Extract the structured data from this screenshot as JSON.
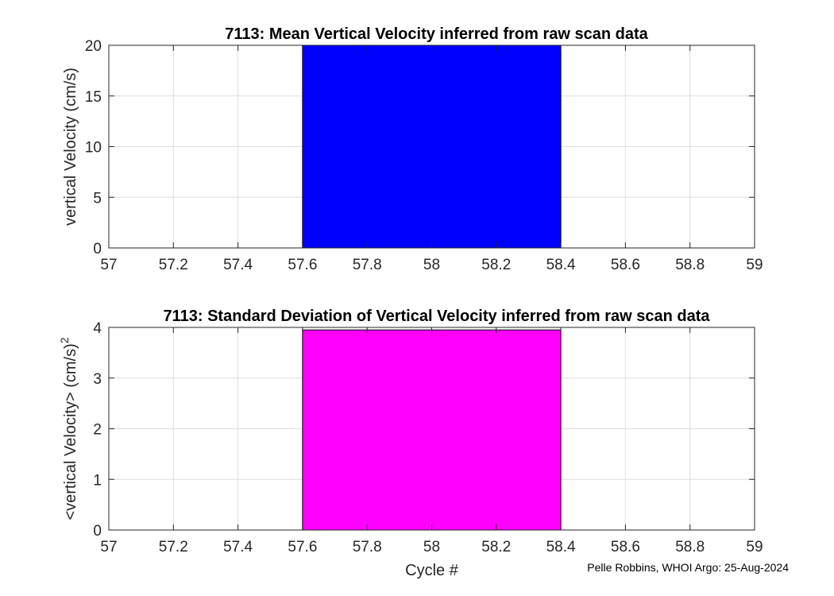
{
  "credit": "Pelle Robbins, WHOI Argo: 25-Aug-2024",
  "chart_data": [
    {
      "type": "bar",
      "title": "7113: Mean Vertical Velocity inferred from raw scan data",
      "xlabel": "",
      "ylabel": "vertical Velocity (cm/s)",
      "ylabel_superscript": "",
      "categories": [
        58
      ],
      "values": [
        20
      ],
      "bar_width": 0.8,
      "xlim": [
        57,
        59
      ],
      "ylim": [
        0,
        20
      ],
      "xticks": [
        57,
        57.2,
        57.4,
        57.6,
        57.8,
        58,
        58.2,
        58.4,
        58.6,
        58.8,
        59
      ],
      "yticks": [
        0,
        5,
        10,
        15,
        20
      ],
      "bar_color": "#0000ff",
      "grid": true
    },
    {
      "type": "bar",
      "title": "7113: Standard Deviation of Vertical Velocity inferred from raw scan data",
      "xlabel": "Cycle #",
      "ylabel": "<vertical Velocity> (cm/s)",
      "ylabel_superscript": "2",
      "categories": [
        58
      ],
      "values": [
        3.95
      ],
      "bar_width": 0.8,
      "xlim": [
        57,
        59
      ],
      "ylim": [
        0,
        4
      ],
      "xticks": [
        57,
        57.2,
        57.4,
        57.6,
        57.8,
        58,
        58.2,
        58.4,
        58.6,
        58.8,
        59
      ],
      "yticks": [
        0,
        1,
        2,
        3,
        4
      ],
      "bar_color": "#ff00ff",
      "grid": true
    }
  ]
}
